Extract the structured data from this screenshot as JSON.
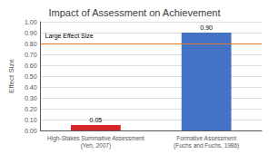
{
  "chart_data": {
    "type": "bar",
    "title": "Impact of Assessment on Achievement",
    "ylabel": "Effect Size",
    "categories": [
      "High-Stakes Summative Assessment\n(Yeh, 2007)",
      "Formative Assessment\n(Fuchs and Fuchs, 1986)"
    ],
    "values": [
      0.05,
      0.9
    ],
    "value_labels": [
      "0.05",
      "0.90"
    ],
    "data_labels": true,
    "colors": [
      "#d9262c",
      "#4472c4"
    ],
    "ylim": [
      0,
      1.0
    ],
    "yticks": [
      {
        "value": 0.0,
        "label": "0.00"
      },
      {
        "value": 0.1,
        "label": "0.10"
      },
      {
        "value": 0.2,
        "label": "0.20"
      },
      {
        "value": 0.3,
        "label": "0.30"
      },
      {
        "value": 0.4,
        "label": "0.40"
      },
      {
        "value": 0.5,
        "label": "0.50"
      },
      {
        "value": 0.6,
        "label": "0.60"
      },
      {
        "value": 0.7,
        "label": "0.70"
      },
      {
        "value": 0.8,
        "label": "0.80"
      },
      {
        "value": 0.9,
        "label": "0.90"
      },
      {
        "value": 1.0,
        "label": "1.00"
      }
    ],
    "ref_lines": [
      {
        "y": 0.8,
        "label": "Large Effect Size",
        "color": "#e07828"
      }
    ],
    "grid": true
  }
}
